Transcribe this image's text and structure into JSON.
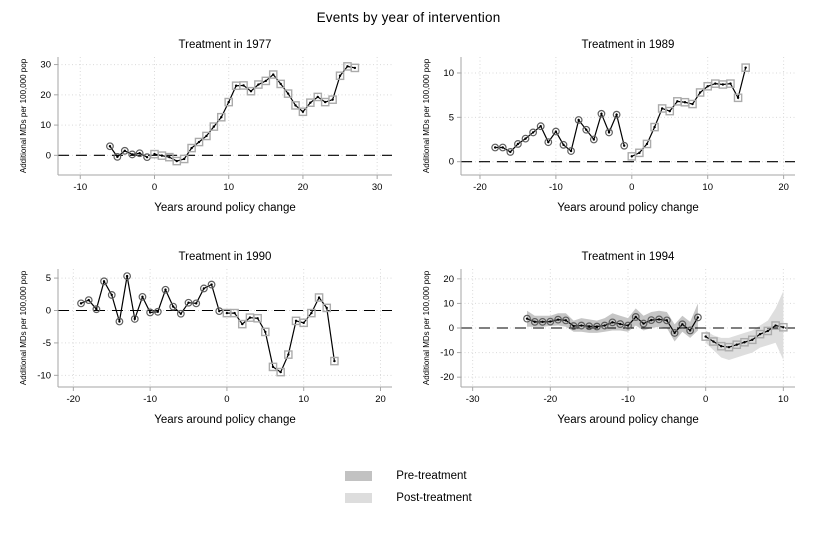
{
  "page_title": "Events by year of intervention",
  "legend": {
    "items": [
      {
        "label": "Pre-treatment",
        "color": "#c2c2c2"
      },
      {
        "label": "Post-treatment",
        "color": "#dddddd"
      }
    ]
  },
  "colors": {
    "grid": "#d9d9d9",
    "axis": "#a6a6a6",
    "line": "#000000",
    "circle_marker": "#5e5e5e",
    "square_marker": "#ababab",
    "zero_line": "#000000",
    "band_pre": "#c6c6c6",
    "band_post": "#dedede"
  },
  "chart_data": [
    {
      "type": "line",
      "title": "Treatment in 1977",
      "xlabel": "Years around policy change",
      "ylabel": "Additional MDs per 100,000 pop",
      "xlim": [
        -13,
        32
      ],
      "ylim": [
        -6.5,
        32.5
      ],
      "xticks": [
        -10,
        0,
        10,
        20,
        30
      ],
      "yticks": [
        0,
        10,
        20,
        30
      ],
      "zero_line": 0,
      "grid": true,
      "legend_position": "none",
      "series": [
        {
          "name": "Pre-treatment",
          "marker": "circle",
          "x": [
            -6,
            -5,
            -4,
            -3,
            -2,
            -1
          ],
          "y": [
            3.0,
            -0.5,
            1.5,
            0.3,
            0.7,
            -0.6
          ]
        },
        {
          "name": "Post-treatment",
          "marker": "square",
          "x": [
            0,
            1,
            2,
            3,
            4,
            5,
            6,
            7,
            8,
            9,
            10,
            11,
            12,
            13,
            14,
            15,
            16,
            17,
            18,
            19,
            20,
            21,
            22,
            23,
            24,
            25,
            26,
            27
          ],
          "y": [
            0.4,
            -0.1,
            -0.6,
            -1.9,
            -1.2,
            2.4,
            4.4,
            6.4,
            9.5,
            12.6,
            17.6,
            23.0,
            23.1,
            21.2,
            23.4,
            24.6,
            26.7,
            23.6,
            20.4,
            16.5,
            14.4,
            17.4,
            19.3,
            17.6,
            18.4,
            26.3,
            29.4,
            28.9
          ]
        }
      ]
    },
    {
      "type": "line",
      "title": "Treatment in 1989",
      "xlabel": "Years around policy change",
      "ylabel": "Additional MDs per 100,000 pop",
      "xlim": [
        -22.5,
        21.5
      ],
      "ylim": [
        -1.5,
        11.8
      ],
      "xticks": [
        -20,
        -10,
        0,
        10,
        20
      ],
      "yticks": [
        0,
        5,
        10
      ],
      "zero_line": 0,
      "grid": true,
      "legend_position": "none",
      "series": [
        {
          "name": "Pre-treatment",
          "marker": "circle",
          "x": [
            -18,
            -17,
            -16,
            -15,
            -14,
            -13,
            -12,
            -11,
            -10,
            -9,
            -8,
            -7,
            -6,
            -5,
            -4,
            -3,
            -2,
            -1
          ],
          "y": [
            1.6,
            1.6,
            1.1,
            2.0,
            2.6,
            3.3,
            4.0,
            2.2,
            3.4,
            1.9,
            1.2,
            4.7,
            3.6,
            2.5,
            5.4,
            3.3,
            5.3,
            1.8
          ]
        },
        {
          "name": "Post-treatment",
          "marker": "square",
          "x": [
            0,
            1,
            2,
            3,
            4,
            5,
            6,
            7,
            8,
            9,
            10,
            11,
            12,
            13,
            14,
            15
          ],
          "y": [
            0.6,
            1.0,
            2.0,
            3.9,
            6.0,
            5.7,
            6.8,
            6.7,
            6.5,
            7.8,
            8.5,
            8.8,
            8.7,
            8.8,
            7.2,
            10.6
          ]
        }
      ]
    },
    {
      "type": "line",
      "title": "Treatment in 1990",
      "xlabel": "Years around policy change",
      "ylabel": "Additional MDs per 100,000 pop",
      "xlim": [
        -22,
        21.5
      ],
      "ylim": [
        -11.8,
        6.4
      ],
      "xticks": [
        -20,
        -10,
        0,
        10,
        20
      ],
      "yticks": [
        -10,
        -5,
        0,
        5
      ],
      "zero_line": 0,
      "grid": true,
      "legend_position": "none",
      "series": [
        {
          "name": "Pre-treatment",
          "marker": "circle",
          "x": [
            -19,
            -18,
            -17,
            -16,
            -15,
            -14,
            -13,
            -12,
            -11,
            -10,
            -9,
            -8,
            -7,
            -6,
            -5,
            -4,
            -3,
            -2,
            -1
          ],
          "y": [
            1.1,
            1.6,
            0.2,
            4.5,
            2.4,
            -1.7,
            5.3,
            -1.3,
            2.1,
            -0.3,
            -0.2,
            3.2,
            0.6,
            -0.5,
            1.2,
            1.1,
            3.4,
            4.0,
            -0.1
          ]
        },
        {
          "name": "Post-treatment",
          "marker": "square",
          "x": [
            0,
            1,
            2,
            3,
            4,
            5,
            6,
            7,
            8,
            9,
            10,
            11,
            12,
            13,
            14
          ],
          "y": [
            -0.4,
            -0.4,
            -2.1,
            -1.1,
            -1.2,
            -3.3,
            -8.7,
            -9.5,
            -6.8,
            -1.6,
            -1.9,
            -0.4,
            2.0,
            0.4,
            -7.8
          ]
        }
      ]
    },
    {
      "type": "line",
      "title": "Treatment in 1994",
      "xlabel": "Years around policy change",
      "ylabel": "Additional MDs per 100,000 pop",
      "xlim": [
        -31.5,
        11.5
      ],
      "ylim": [
        -24,
        24
      ],
      "xticks": [
        -30,
        -20,
        -10,
        0,
        10
      ],
      "yticks": [
        -20,
        -10,
        0,
        10,
        20
      ],
      "zero_line": 0,
      "grid": true,
      "legend_position": "none",
      "bands": [
        {
          "name": "Pre-treatment",
          "color": "#c6c6c6",
          "x": [
            -23,
            -22,
            -21,
            -20,
            -19,
            -18,
            -17,
            -16,
            -15,
            -14,
            -13,
            -12,
            -11,
            -10,
            -9,
            -8,
            -7,
            -6,
            -5,
            -4,
            -3,
            -2,
            -1
          ],
          "lower": [
            0.5,
            0.5,
            0.5,
            0.8,
            1.0,
            0.5,
            -1.5,
            -1.5,
            -2.0,
            -2.0,
            -1.5,
            -1.0,
            -1.0,
            -1.5,
            1.0,
            -1.0,
            0.0,
            0.5,
            0.0,
            -5.5,
            -1.5,
            -4.0,
            -1.0
          ],
          "upper": [
            7.0,
            5.0,
            5.0,
            5.0,
            6.0,
            6.0,
            3.0,
            4.0,
            3.5,
            3.0,
            4.0,
            6.0,
            5.0,
            4.0,
            8.0,
            5.0,
            6.5,
            7.0,
            6.5,
            1.5,
            5.0,
            2.5,
            10.0
          ]
        },
        {
          "name": "Post-treatment",
          "color": "#dedede",
          "x": [
            0,
            1,
            2,
            3,
            4,
            5,
            6,
            7,
            8,
            9,
            10
          ],
          "lower": [
            -6,
            -9,
            -12,
            -13,
            -12,
            -11,
            -10,
            -8,
            -7,
            -6,
            -13
          ],
          "upper": [
            -1,
            -3,
            -4,
            -4,
            -3,
            -2,
            -1,
            1,
            3,
            8,
            15
          ]
        }
      ],
      "series": [
        {
          "name": "Pre-treatment",
          "marker": "circle",
          "x": [
            -23,
            -22,
            -21,
            -20,
            -19,
            -18,
            -17,
            -16,
            -15,
            -14,
            -13,
            -12,
            -11,
            -10,
            -9,
            -8,
            -7,
            -6,
            -5,
            -4,
            -3,
            -2,
            -1
          ],
          "y": [
            3.8,
            2.5,
            2.5,
            2.6,
            3.4,
            3.1,
            0.8,
            1.0,
            0.7,
            0.6,
            1.0,
            2.3,
            1.6,
            1.0,
            4.5,
            1.8,
            3.2,
            3.5,
            3.1,
            -2.0,
            1.5,
            -1.0,
            4.3
          ]
        },
        {
          "name": "Post-treatment",
          "marker": "square",
          "x": [
            0,
            1,
            2,
            3,
            4,
            5,
            6,
            7,
            8,
            9,
            10
          ],
          "y": [
            -3.5,
            -5.5,
            -7.4,
            -7.8,
            -6.8,
            -5.8,
            -4.8,
            -2.5,
            -1.2,
            1.0,
            0.3
          ]
        }
      ]
    }
  ]
}
